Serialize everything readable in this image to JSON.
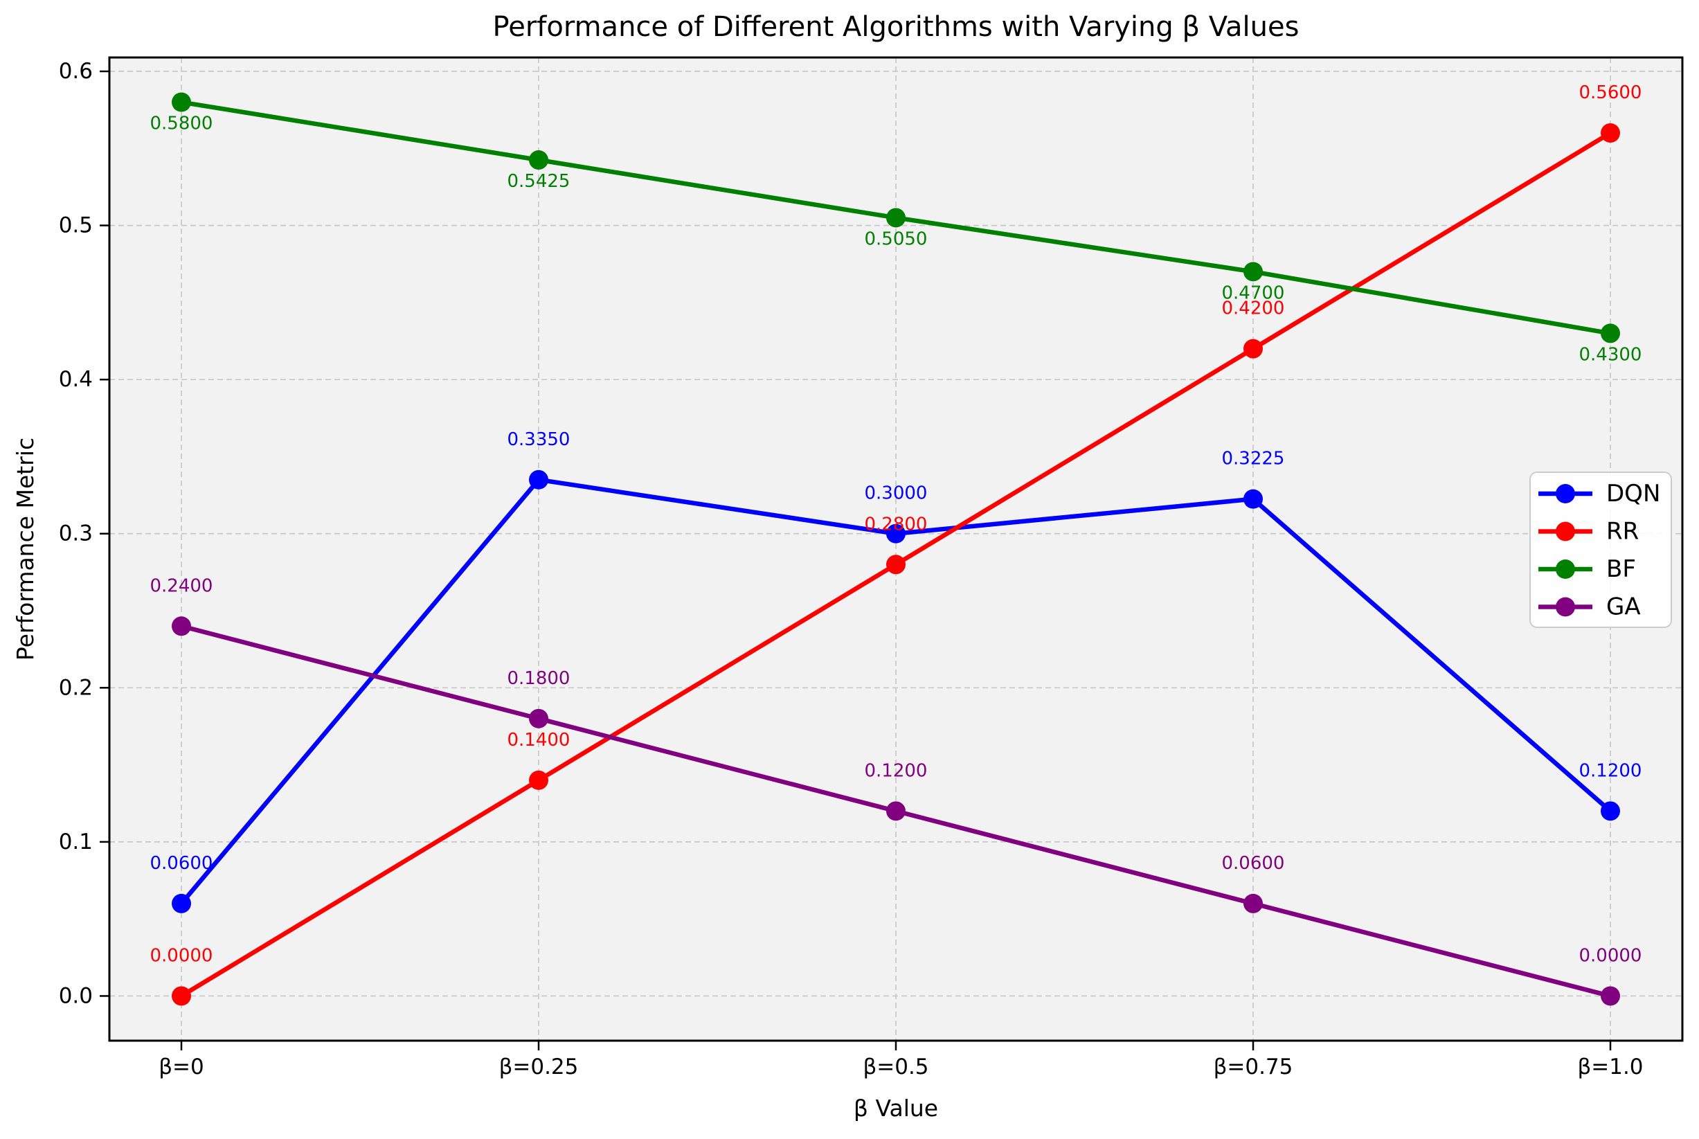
{
  "chart_data": {
    "type": "line",
    "title": "Performance of Different Algorithms with Varying β Values",
    "xlabel": "β Value",
    "ylabel": "Performance Metric",
    "categories": [
      "β=0",
      "β=0.25",
      "β=0.5",
      "β=0.75",
      "β=1.0"
    ],
    "ytick_values": [
      0.0,
      0.1,
      0.2,
      0.3,
      0.4,
      0.5,
      0.6
    ],
    "ytick_labels": [
      "0.0",
      "0.1",
      "0.2",
      "0.3",
      "0.4",
      "0.5",
      "0.6"
    ],
    "ylim": [
      -0.029,
      0.609
    ],
    "grid": true,
    "grid_on": "both",
    "plot_bg": "#f2f2f2",
    "grid_color": "#c8c8c8",
    "legend_position": "center right",
    "series": [
      {
        "name": "DQN",
        "color": "#0000ff",
        "values": [
          0.06,
          0.335,
          0.3,
          0.3225,
          0.12
        ],
        "point_labels": [
          "0.0600",
          "0.3350",
          "0.3000",
          "0.3225",
          "0.1200"
        ],
        "label_position": "above"
      },
      {
        "name": "RR",
        "color": "#ff0000",
        "values": [
          0.0,
          0.14,
          0.28,
          0.42,
          0.56
        ],
        "point_labels": [
          "0.0000",
          "0.1400",
          "0.2800",
          "0.4200",
          "0.5600"
        ],
        "label_position": "above"
      },
      {
        "name": "BF",
        "color": "#008000",
        "values": [
          0.58,
          0.5425,
          0.505,
          0.47,
          0.43
        ],
        "point_labels": [
          "0.5800",
          "0.5425",
          "0.5050",
          "0.4700",
          "0.4300"
        ],
        "label_position": "below"
      },
      {
        "name": "GA",
        "color": "#800080",
        "values": [
          0.24,
          0.18,
          0.12,
          0.06,
          0.0
        ],
        "point_labels": [
          "0.2400",
          "0.1800",
          "0.1200",
          "0.0600",
          "0.0000"
        ],
        "label_position": "above"
      }
    ]
  }
}
